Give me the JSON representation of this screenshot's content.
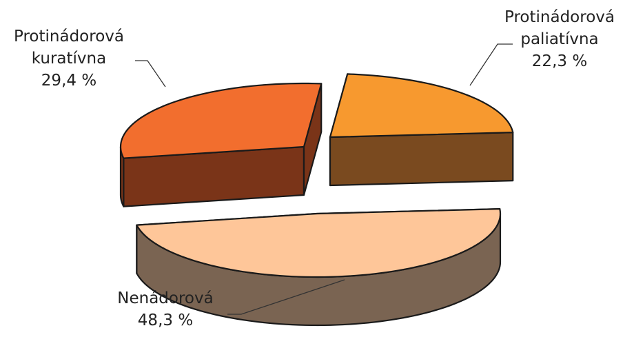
{
  "chart_data": {
    "type": "pie",
    "title": "",
    "three_d": true,
    "exploded": true,
    "unit": "%",
    "slices": [
      {
        "name_lines": [
          "Protinádorová",
          "kuratívna"
        ],
        "label": "Protinádorová kuratívna",
        "value": 29.4,
        "value_text": "29,4 %",
        "top_color": "#F26E2E",
        "side_color": "#7A3418"
      },
      {
        "name_lines": [
          "Protinádorová",
          "paliatívna"
        ],
        "label": "Protinádorová paliatívna",
        "value": 22.3,
        "value_text": "22,3 %",
        "top_color": "#F7992F",
        "side_color": "#7A4A1F"
      },
      {
        "name_lines": [
          "Nenádorová"
        ],
        "label": "Nenádorová",
        "value": 48.3,
        "value_text": "48,3 %",
        "top_color": "#FEC699",
        "side_color": "#7A6452"
      }
    ]
  }
}
